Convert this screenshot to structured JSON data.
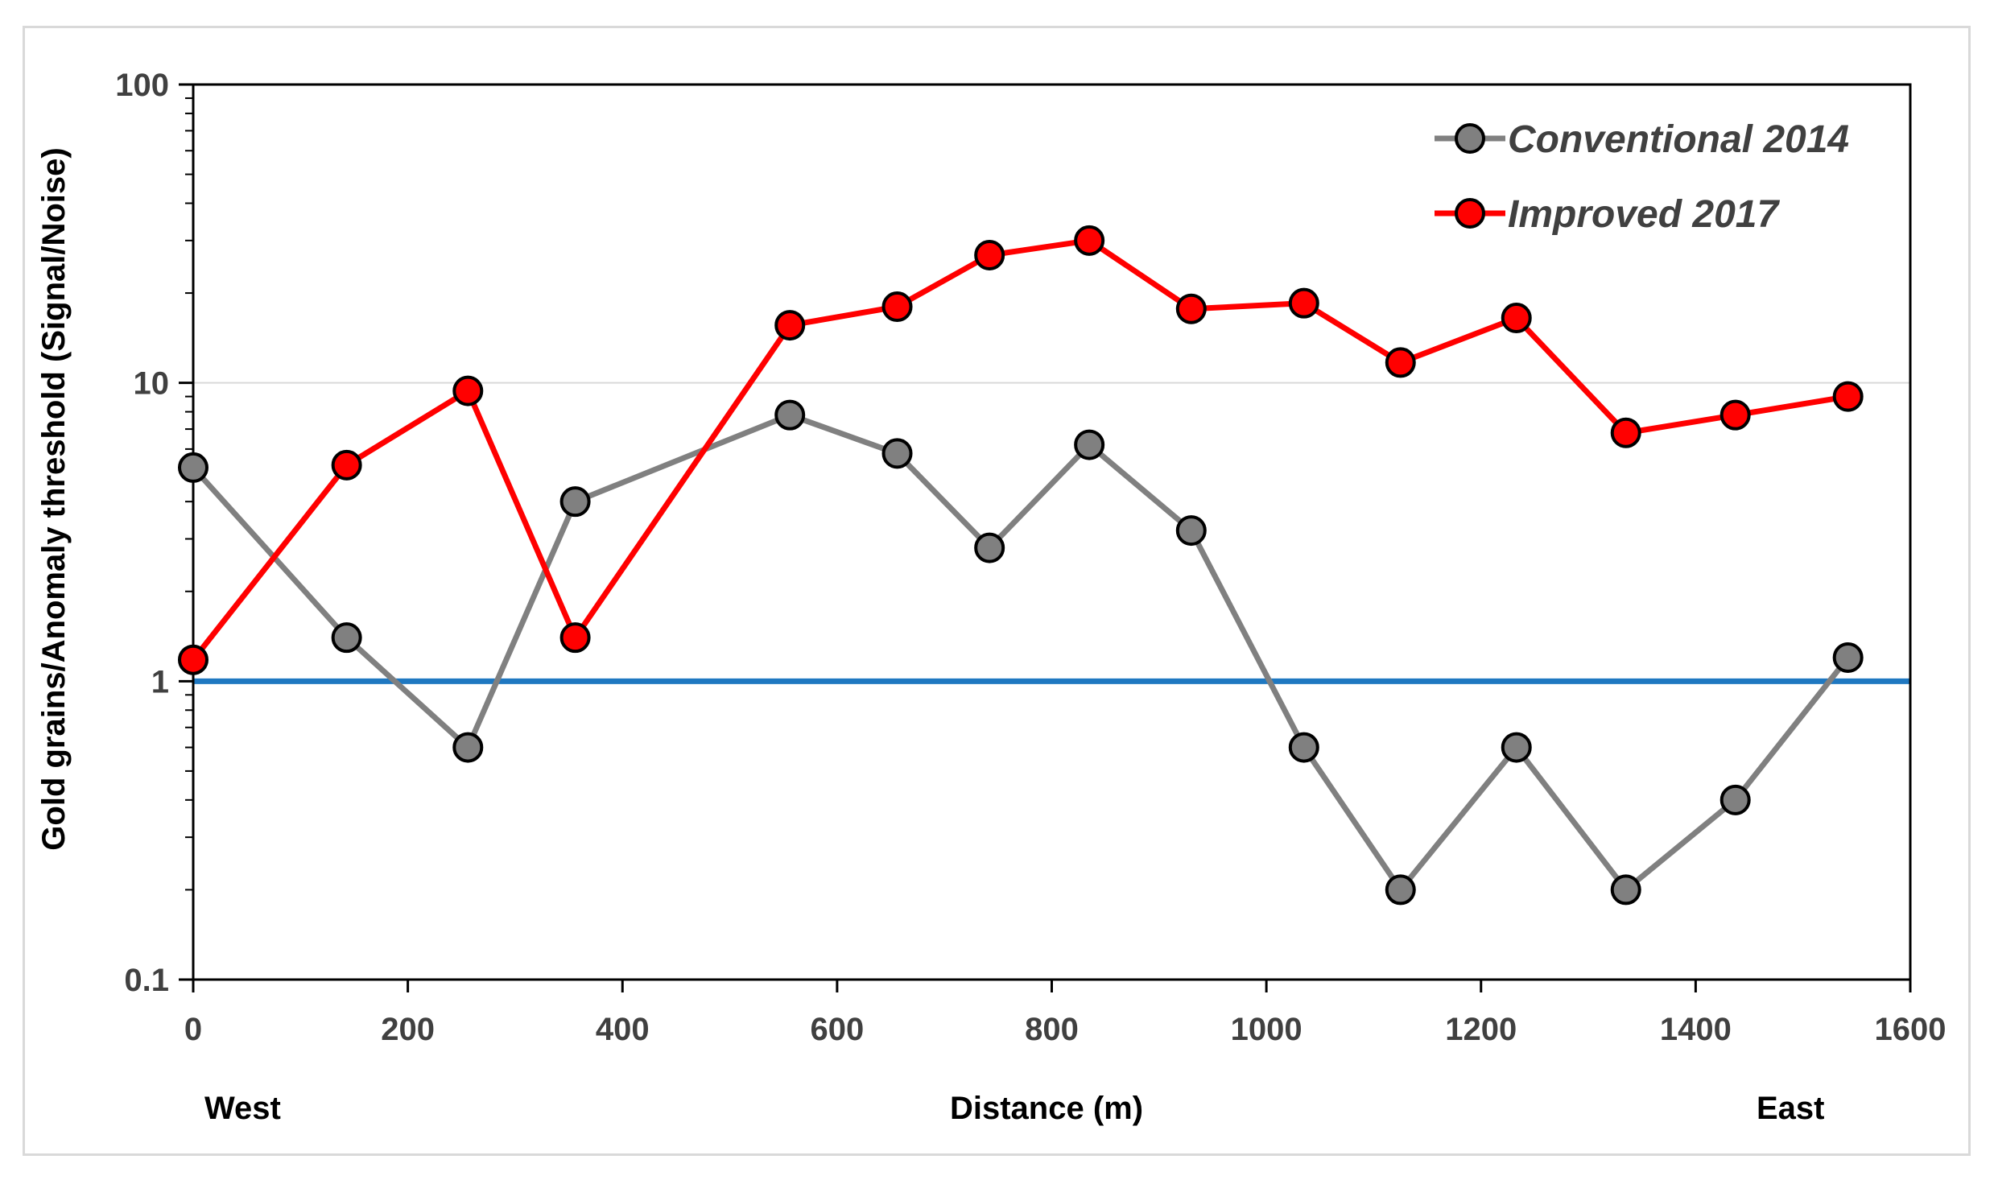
{
  "chart_data": {
    "type": "line",
    "yscale": "log",
    "xlabel": "Distance (m)",
    "ylabel": "Gold grains/Anomaly threshold  (Signal/Noise)",
    "xlim": [
      0,
      1600
    ],
    "ylim": [
      0.1,
      100
    ],
    "x_ticks": [
      "0",
      "200",
      "400",
      "600",
      "800",
      "1000",
      "1200",
      "1400",
      "1600"
    ],
    "x_tick_values": [
      0,
      200,
      400,
      600,
      800,
      1000,
      1200,
      1400,
      1600
    ],
    "y_ticks": [
      "0.1",
      "1",
      "10",
      "100"
    ],
    "y_tick_values": [
      0.1,
      1,
      10,
      100
    ],
    "grid": "horizontal",
    "legend_position": "top-right",
    "annotations": {
      "west": "West",
      "east": "East"
    },
    "threshold": {
      "value": 1,
      "color": "#1f78c1"
    },
    "series": [
      {
        "name": "Conventional 2014",
        "line_color": "#808080",
        "marker_fill": "#808080",
        "x": [
          0,
          143,
          256,
          356,
          556,
          656,
          742,
          835,
          930,
          1035,
          1125,
          1233,
          1335,
          1437,
          1542
        ],
        "values": [
          5.2,
          1.4,
          0.6,
          4.0,
          7.8,
          5.8,
          2.8,
          6.2,
          3.2,
          0.6,
          0.2,
          0.6,
          0.2,
          0.4,
          1.2
        ]
      },
      {
        "name": "Improved 2017",
        "line_color": "#ff0000",
        "marker_fill": "#ff0000",
        "x": [
          0,
          143,
          256,
          356,
          556,
          656,
          742,
          835,
          930,
          1035,
          1125,
          1233,
          1335,
          1437,
          1542
        ],
        "values": [
          1.18,
          5.3,
          9.4,
          1.4,
          15.6,
          18.0,
          26.8,
          30.0,
          17.7,
          18.5,
          11.7,
          16.5,
          6.8,
          7.8,
          9.0
        ]
      }
    ]
  }
}
